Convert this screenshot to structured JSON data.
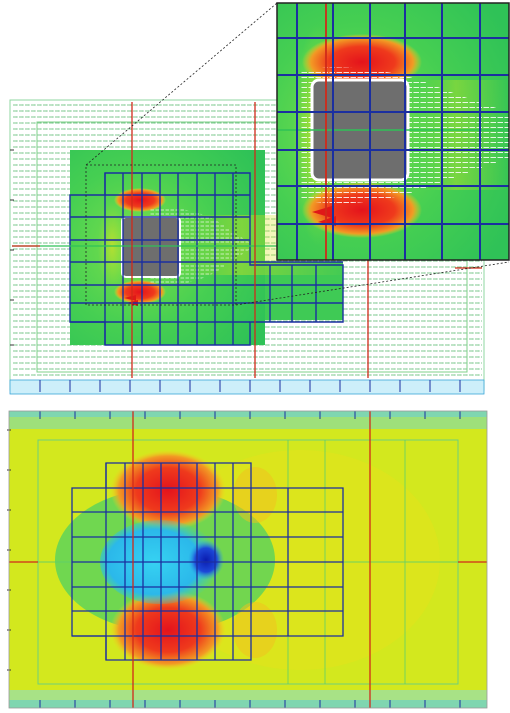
{
  "figure": {
    "description_panels": [
      "top-velocity-field-with-zoom-inset",
      "bottom-pressure-contour-field"
    ]
  },
  "colors": {
    "background": "#ffffff",
    "mesh_blue": "#1b2fa0",
    "refinement_red": "#d12a1a",
    "field_green": "#35c84a",
    "field_yellow": "#d6e61e",
    "field_red": "#e01818",
    "field_orange": "#f2a21c",
    "field_cyan": "#38c8ec",
    "field_deep_blue": "#1234d0",
    "obstacle_gray": "#6e6e6e",
    "vector_green": "#2aa84a",
    "vector_white": "#ffffff"
  },
  "icons": {
    "obstacle": "square-obstacle",
    "zoom_connector": "dotted-zoom-lines"
  }
}
